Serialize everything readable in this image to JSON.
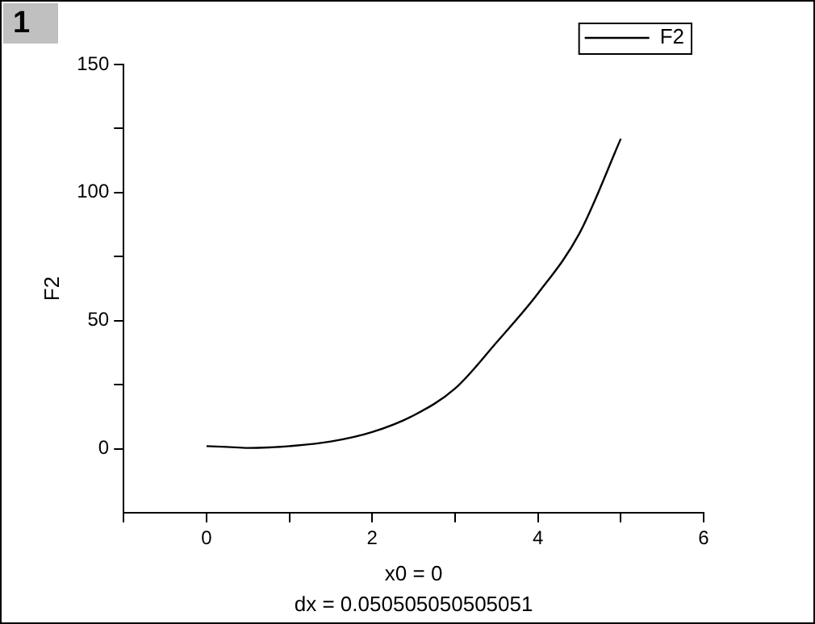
{
  "chart_data": {
    "type": "line",
    "xlabel": "x0 = 0",
    "ylabel": "F2",
    "annotations": [
      "1",
      "dx = 0.050505050505051"
    ],
    "series": [
      {
        "name": "F2",
        "color": "#000000",
        "x": [
          0,
          0.25,
          0.5,
          0.75,
          1,
          1.5,
          2,
          2.5,
          3,
          3.5,
          4,
          4.5,
          5
        ],
        "values": [
          1,
          0.7,
          0.3,
          0.5,
          1,
          2.8,
          6.5,
          13,
          23.5,
          41.5,
          60.6,
          84,
          121
        ]
      }
    ],
    "xlim": [
      -1,
      6
    ],
    "xticks": [
      {
        "value": -1,
        "label": null
      },
      0,
      {
        "value": 1,
        "label": null
      },
      2,
      {
        "value": 3,
        "label": null
      },
      4,
      {
        "value": 5,
        "label": null
      },
      6
    ],
    "ylim": [
      -25,
      150
    ],
    "yticks": [
      0,
      {
        "value": 25,
        "label": null
      },
      50,
      {
        "value": 75,
        "label": null
      },
      100,
      {
        "value": 125,
        "label": null
      },
      150
    ],
    "grid": false,
    "legend": "top right",
    "marker": "none",
    "line_style": "solid"
  }
}
